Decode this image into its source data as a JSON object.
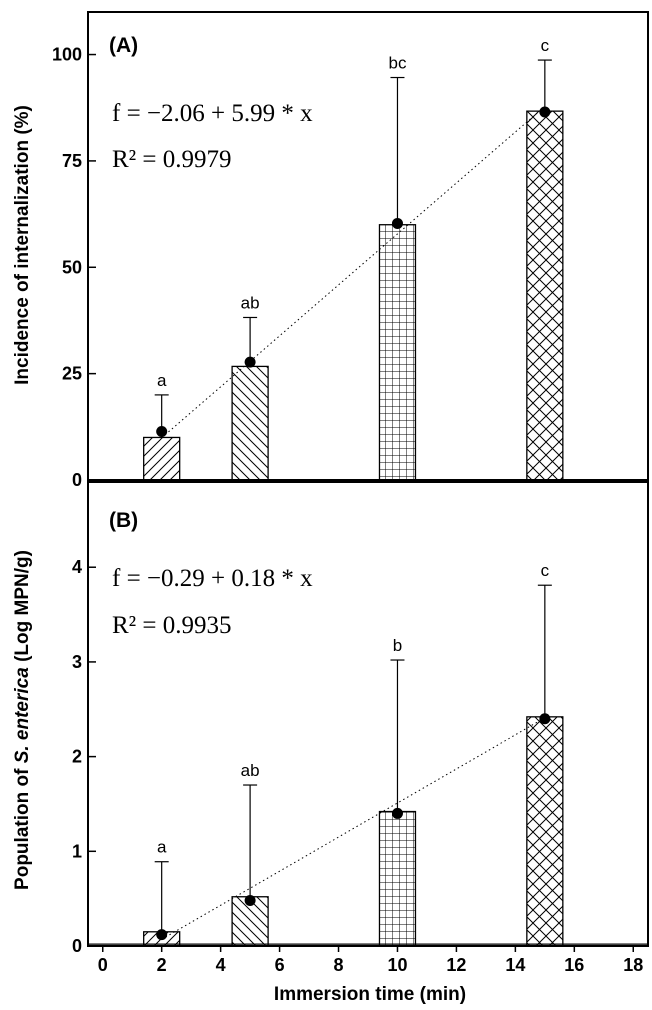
{
  "chart_data": [
    {
      "type": "bar",
      "panel_label": "(A)",
      "ylabel": "Incidence of internalization (%)",
      "ylim": [
        0,
        110
      ],
      "yticks": [
        0,
        25,
        50,
        75,
        100
      ],
      "grid": false,
      "equation": "f = −2.06 + 5.99 * x",
      "r_squared": "R² = 0.9979",
      "series": [
        {
          "x": [
            2,
            5,
            10,
            15
          ],
          "values": [
            10,
            26.7,
            60,
            86.7
          ],
          "error": [
            10,
            11.5,
            34.6,
            12
          ],
          "letters": [
            "a",
            "ab",
            "bc",
            "c"
          ],
          "patterns": [
            "hatch-fwd",
            "hatch-back",
            "grid",
            "crosshatch"
          ]
        }
      ],
      "points": [
        {
          "x": 2,
          "y": 11.4
        },
        {
          "x": 5,
          "y": 27.7
        },
        {
          "x": 10,
          "y": 60.3
        },
        {
          "x": 15,
          "y": 86.5
        }
      ],
      "fit": {
        "intercept": -2.06,
        "slope": 5.99,
        "x_range": [
          2,
          15
        ]
      }
    },
    {
      "type": "bar",
      "panel_label": "(B)",
      "ylabel_prefix": "Population of ",
      "ylabel_italic": "S. enterica",
      "ylabel_suffix": " (Log MPN/g)",
      "ylim": [
        0,
        4.9
      ],
      "yticks": [
        0,
        1,
        2,
        3,
        4
      ],
      "grid": false,
      "xlabel": "Immersion time (min)",
      "xlim": [
        -0.5,
        18.5
      ],
      "xticks": [
        0,
        2,
        4,
        6,
        8,
        10,
        12,
        14,
        16,
        18
      ],
      "equation": "f = −0.29 + 0.18 * x",
      "r_squared": "R² = 0.9935",
      "series": [
        {
          "x": [
            2,
            5,
            10,
            15
          ],
          "values": [
            0.15,
            0.52,
            1.42,
            2.42
          ],
          "error": [
            0.74,
            1.18,
            1.6,
            1.39
          ],
          "letters": [
            "a",
            "ab",
            "b",
            "c"
          ],
          "patterns": [
            "hatch-fwd",
            "hatch-back",
            "grid",
            "crosshatch"
          ]
        }
      ],
      "points": [
        {
          "x": 2,
          "y": 0.12
        },
        {
          "x": 5,
          "y": 0.48
        },
        {
          "x": 10,
          "y": 1.4
        },
        {
          "x": 15,
          "y": 2.4
        }
      ],
      "fit": {
        "intercept": -0.29,
        "slope": 0.18,
        "x_range": [
          2,
          15
        ]
      }
    }
  ]
}
